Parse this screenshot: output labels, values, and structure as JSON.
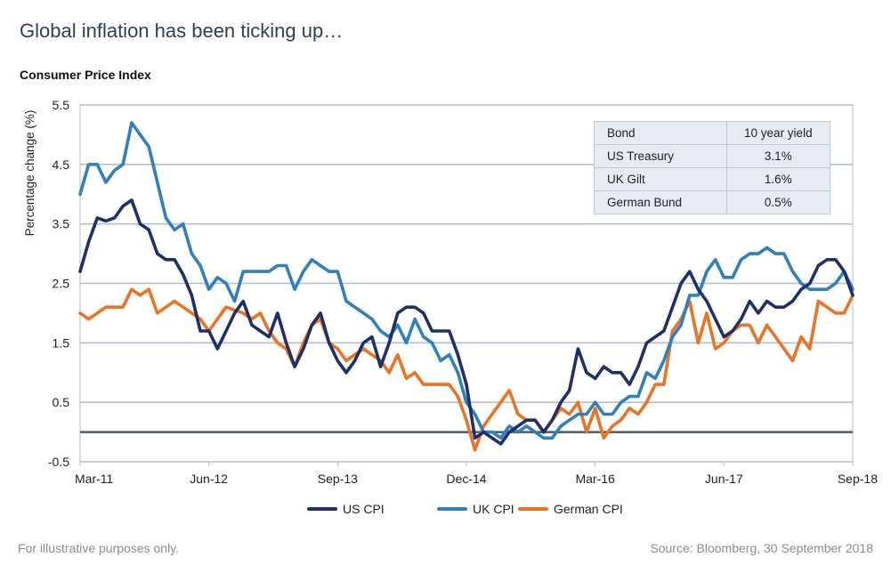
{
  "page_title": "Global inflation has been ticking up…",
  "chart_heading": "Consumer Price Index",
  "bond_table": {
    "header": [
      "Bond",
      "10 year yield"
    ],
    "rows": [
      [
        "US Treasury",
        "3.1%"
      ],
      [
        "UK Gilt",
        "1.6%"
      ],
      [
        "German Bund",
        "0.5%"
      ]
    ]
  },
  "footer": {
    "left": "For illustrative purposes only.",
    "right": "Source: Bloomberg, 30 September 2018"
  },
  "colors": {
    "us": "#1f2f6b",
    "uk": "#2f7fc1",
    "de": "#ec7224",
    "grid": "#b3bfcc",
    "zero": "#4d5a6a"
  },
  "chart_data": {
    "type": "line",
    "title": "",
    "ylabel": "Percentage change (%)",
    "xlabel": "",
    "ylim": [
      -0.5,
      5.5
    ],
    "yticks": [
      -0.5,
      0.5,
      1.5,
      2.5,
      3.5,
      4.5,
      5.5
    ],
    "grid": true,
    "legend_position": "bottom",
    "x_range": [
      "2011-03",
      "2018-09"
    ],
    "x_tick_labels": [
      "Mar-11",
      "Jun-12",
      "Sep-13",
      "Dec-14",
      "Mar-16",
      "Jun-17",
      "Sep-18"
    ],
    "x_ticks": [
      "2011-03",
      "2012-06",
      "2013-09",
      "2014-12",
      "2016-03",
      "2017-06",
      "2018-09"
    ],
    "series": [
      {
        "name": "US CPI",
        "color_key": "us",
        "points": [
          [
            "2011-03",
            2.7
          ],
          [
            "2011-04",
            3.2
          ],
          [
            "2011-05",
            3.6
          ],
          [
            "2011-06",
            3.55
          ],
          [
            "2011-07",
            3.6
          ],
          [
            "2011-08",
            3.8
          ],
          [
            "2011-09",
            3.9
          ],
          [
            "2011-10",
            3.5
          ],
          [
            "2011-11",
            3.4
          ],
          [
            "2011-12",
            3.0
          ],
          [
            "2012-01",
            2.9
          ],
          [
            "2012-02",
            2.9
          ],
          [
            "2012-03",
            2.65
          ],
          [
            "2012-04",
            2.3
          ],
          [
            "2012-05",
            1.7
          ],
          [
            "2012-06",
            1.7
          ],
          [
            "2012-07",
            1.4
          ],
          [
            "2012-08",
            1.7
          ],
          [
            "2012-09",
            2.0
          ],
          [
            "2012-10",
            2.2
          ],
          [
            "2012-11",
            1.8
          ],
          [
            "2012-12",
            1.7
          ],
          [
            "2013-01",
            1.6
          ],
          [
            "2013-02",
            2.0
          ],
          [
            "2013-03",
            1.5
          ],
          [
            "2013-04",
            1.1
          ],
          [
            "2013-05",
            1.4
          ],
          [
            "2013-06",
            1.8
          ],
          [
            "2013-07",
            2.0
          ],
          [
            "2013-08",
            1.5
          ],
          [
            "2013-09",
            1.2
          ],
          [
            "2013-10",
            1.0
          ],
          [
            "2013-11",
            1.2
          ],
          [
            "2013-12",
            1.5
          ],
          [
            "2014-01",
            1.6
          ],
          [
            "2014-02",
            1.1
          ],
          [
            "2014-03",
            1.5
          ],
          [
            "2014-04",
            2.0
          ],
          [
            "2014-05",
            2.1
          ],
          [
            "2014-06",
            2.1
          ],
          [
            "2014-07",
            2.0
          ],
          [
            "2014-08",
            1.7
          ],
          [
            "2014-09",
            1.7
          ],
          [
            "2014-10",
            1.7
          ],
          [
            "2014-11",
            1.3
          ],
          [
            "2014-12",
            0.8
          ],
          [
            "2015-01",
            -0.1
          ],
          [
            "2015-02",
            0.0
          ],
          [
            "2015-03",
            -0.1
          ],
          [
            "2015-04",
            -0.2
          ],
          [
            "2015-05",
            0.0
          ],
          [
            "2015-06",
            0.1
          ],
          [
            "2015-07",
            0.2
          ],
          [
            "2015-08",
            0.2
          ],
          [
            "2015-09",
            0.0
          ],
          [
            "2015-10",
            0.2
          ],
          [
            "2015-11",
            0.5
          ],
          [
            "2015-12",
            0.7
          ],
          [
            "2016-01",
            1.4
          ],
          [
            "2016-02",
            1.0
          ],
          [
            "2016-03",
            0.9
          ],
          [
            "2016-04",
            1.1
          ],
          [
            "2016-05",
            1.0
          ],
          [
            "2016-06",
            1.0
          ],
          [
            "2016-07",
            0.8
          ],
          [
            "2016-08",
            1.1
          ],
          [
            "2016-09",
            1.5
          ],
          [
            "2016-10",
            1.6
          ],
          [
            "2016-11",
            1.7
          ],
          [
            "2016-12",
            2.1
          ],
          [
            "2017-01",
            2.5
          ],
          [
            "2017-02",
            2.7
          ],
          [
            "2017-03",
            2.4
          ],
          [
            "2017-04",
            2.2
          ],
          [
            "2017-05",
            1.9
          ],
          [
            "2017-06",
            1.6
          ],
          [
            "2017-07",
            1.7
          ],
          [
            "2017-08",
            1.9
          ],
          [
            "2017-09",
            2.2
          ],
          [
            "2017-10",
            2.0
          ],
          [
            "2017-11",
            2.2
          ],
          [
            "2017-12",
            2.1
          ],
          [
            "2018-01",
            2.1
          ],
          [
            "2018-02",
            2.2
          ],
          [
            "2018-03",
            2.4
          ],
          [
            "2018-04",
            2.5
          ],
          [
            "2018-05",
            2.8
          ],
          [
            "2018-06",
            2.9
          ],
          [
            "2018-07",
            2.9
          ],
          [
            "2018-08",
            2.7
          ],
          [
            "2018-09",
            2.3
          ]
        ]
      },
      {
        "name": "UK CPI",
        "color_key": "uk",
        "points": [
          [
            "2011-03",
            4.0
          ],
          [
            "2011-04",
            4.5
          ],
          [
            "2011-05",
            4.5
          ],
          [
            "2011-06",
            4.2
          ],
          [
            "2011-07",
            4.4
          ],
          [
            "2011-08",
            4.5
          ],
          [
            "2011-09",
            5.2
          ],
          [
            "2011-10",
            5.0
          ],
          [
            "2011-11",
            4.8
          ],
          [
            "2011-12",
            4.2
          ],
          [
            "2012-01",
            3.6
          ],
          [
            "2012-02",
            3.4
          ],
          [
            "2012-03",
            3.5
          ],
          [
            "2012-04",
            3.0
          ],
          [
            "2012-05",
            2.8
          ],
          [
            "2012-06",
            2.4
          ],
          [
            "2012-07",
            2.6
          ],
          [
            "2012-08",
            2.5
          ],
          [
            "2012-09",
            2.2
          ],
          [
            "2012-10",
            2.7
          ],
          [
            "2012-11",
            2.7
          ],
          [
            "2012-12",
            2.7
          ],
          [
            "2013-01",
            2.7
          ],
          [
            "2013-02",
            2.8
          ],
          [
            "2013-03",
            2.8
          ],
          [
            "2013-04",
            2.4
          ],
          [
            "2013-05",
            2.7
          ],
          [
            "2013-06",
            2.9
          ],
          [
            "2013-07",
            2.8
          ],
          [
            "2013-08",
            2.7
          ],
          [
            "2013-09",
            2.7
          ],
          [
            "2013-10",
            2.2
          ],
          [
            "2013-11",
            2.1
          ],
          [
            "2013-12",
            2.0
          ],
          [
            "2014-01",
            1.9
          ],
          [
            "2014-02",
            1.7
          ],
          [
            "2014-03",
            1.6
          ],
          [
            "2014-04",
            1.8
          ],
          [
            "2014-05",
            1.5
          ],
          [
            "2014-06",
            1.9
          ],
          [
            "2014-07",
            1.6
          ],
          [
            "2014-08",
            1.5
          ],
          [
            "2014-09",
            1.2
          ],
          [
            "2014-10",
            1.3
          ],
          [
            "2014-11",
            1.0
          ],
          [
            "2014-12",
            0.5
          ],
          [
            "2015-01",
            0.3
          ],
          [
            "2015-02",
            0.0
          ],
          [
            "2015-03",
            0.0
          ],
          [
            "2015-04",
            -0.1
          ],
          [
            "2015-05",
            0.1
          ],
          [
            "2015-06",
            0.0
          ],
          [
            "2015-07",
            0.1
          ],
          [
            "2015-08",
            0.0
          ],
          [
            "2015-09",
            -0.1
          ],
          [
            "2015-10",
            -0.1
          ],
          [
            "2015-11",
            0.1
          ],
          [
            "2015-12",
            0.2
          ],
          [
            "2016-01",
            0.3
          ],
          [
            "2016-02",
            0.3
          ],
          [
            "2016-03",
            0.5
          ],
          [
            "2016-04",
            0.3
          ],
          [
            "2016-05",
            0.3
          ],
          [
            "2016-06",
            0.5
          ],
          [
            "2016-07",
            0.6
          ],
          [
            "2016-08",
            0.6
          ],
          [
            "2016-09",
            1.0
          ],
          [
            "2016-10",
            0.9
          ],
          [
            "2016-11",
            1.2
          ],
          [
            "2016-12",
            1.6
          ],
          [
            "2017-01",
            1.8
          ],
          [
            "2017-02",
            2.3
          ],
          [
            "2017-03",
            2.3
          ],
          [
            "2017-04",
            2.7
          ],
          [
            "2017-05",
            2.9
          ],
          [
            "2017-06",
            2.6
          ],
          [
            "2017-07",
            2.6
          ],
          [
            "2017-08",
            2.9
          ],
          [
            "2017-09",
            3.0
          ],
          [
            "2017-10",
            3.0
          ],
          [
            "2017-11",
            3.1
          ],
          [
            "2017-12",
            3.0
          ],
          [
            "2018-01",
            3.0
          ],
          [
            "2018-02",
            2.7
          ],
          [
            "2018-03",
            2.5
          ],
          [
            "2018-04",
            2.4
          ],
          [
            "2018-05",
            2.4
          ],
          [
            "2018-06",
            2.4
          ],
          [
            "2018-07",
            2.5
          ],
          [
            "2018-08",
            2.7
          ],
          [
            "2018-09",
            2.4
          ]
        ]
      },
      {
        "name": "German CPI",
        "color_key": "de",
        "points": [
          [
            "2011-03",
            2.0
          ],
          [
            "2011-04",
            1.9
          ],
          [
            "2011-05",
            2.0
          ],
          [
            "2011-06",
            2.1
          ],
          [
            "2011-07",
            2.1
          ],
          [
            "2011-08",
            2.1
          ],
          [
            "2011-09",
            2.4
          ],
          [
            "2011-10",
            2.3
          ],
          [
            "2011-11",
            2.4
          ],
          [
            "2011-12",
            2.0
          ],
          [
            "2012-01",
            2.1
          ],
          [
            "2012-02",
            2.2
          ],
          [
            "2012-03",
            2.1
          ],
          [
            "2012-04",
            2.0
          ],
          [
            "2012-05",
            1.9
          ],
          [
            "2012-06",
            1.7
          ],
          [
            "2012-07",
            1.9
          ],
          [
            "2012-08",
            2.1
          ],
          [
            "2012-09",
            2.05
          ],
          [
            "2012-10",
            2.0
          ],
          [
            "2012-11",
            1.9
          ],
          [
            "2012-12",
            2.0
          ],
          [
            "2013-01",
            1.7
          ],
          [
            "2013-02",
            1.5
          ],
          [
            "2013-03",
            1.4
          ],
          [
            "2013-04",
            1.1
          ],
          [
            "2013-05",
            1.5
          ],
          [
            "2013-06",
            1.8
          ],
          [
            "2013-07",
            1.9
          ],
          [
            "2013-08",
            1.5
          ],
          [
            "2013-09",
            1.4
          ],
          [
            "2013-10",
            1.2
          ],
          [
            "2013-11",
            1.3
          ],
          [
            "2013-12",
            1.4
          ],
          [
            "2014-01",
            1.3
          ],
          [
            "2014-02",
            1.2
          ],
          [
            "2014-03",
            1.0
          ],
          [
            "2014-04",
            1.3
          ],
          [
            "2014-05",
            0.9
          ],
          [
            "2014-06",
            1.0
          ],
          [
            "2014-07",
            0.8
          ],
          [
            "2014-08",
            0.8
          ],
          [
            "2014-09",
            0.8
          ],
          [
            "2014-10",
            0.8
          ],
          [
            "2014-11",
            0.6
          ],
          [
            "2014-12",
            0.2
          ],
          [
            "2015-01",
            -0.3
          ],
          [
            "2015-02",
            0.1
          ],
          [
            "2015-03",
            0.3
          ],
          [
            "2015-04",
            0.5
          ],
          [
            "2015-05",
            0.7
          ],
          [
            "2015-06",
            0.3
          ],
          [
            "2015-07",
            0.2
          ],
          [
            "2015-08",
            0.2
          ],
          [
            "2015-09",
            0.0
          ],
          [
            "2015-10",
            0.2
          ],
          [
            "2015-11",
            0.4
          ],
          [
            "2015-12",
            0.3
          ],
          [
            "2016-01",
            0.5
          ],
          [
            "2016-02",
            0.0
          ],
          [
            "2016-03",
            0.4
          ],
          [
            "2016-04",
            -0.1
          ],
          [
            "2016-05",
            0.1
          ],
          [
            "2016-06",
            0.2
          ],
          [
            "2016-07",
            0.4
          ],
          [
            "2016-08",
            0.3
          ],
          [
            "2016-09",
            0.5
          ],
          [
            "2016-10",
            0.8
          ],
          [
            "2016-11",
            0.8
          ],
          [
            "2016-12",
            1.7
          ],
          [
            "2017-01",
            1.9
          ],
          [
            "2017-02",
            2.2
          ],
          [
            "2017-03",
            1.5
          ],
          [
            "2017-04",
            2.0
          ],
          [
            "2017-05",
            1.4
          ],
          [
            "2017-06",
            1.5
          ],
          [
            "2017-07",
            1.7
          ],
          [
            "2017-08",
            1.8
          ],
          [
            "2017-09",
            1.8
          ],
          [
            "2017-10",
            1.5
          ],
          [
            "2017-11",
            1.8
          ],
          [
            "2017-12",
            1.6
          ],
          [
            "2018-01",
            1.4
          ],
          [
            "2018-02",
            1.2
          ],
          [
            "2018-03",
            1.6
          ],
          [
            "2018-04",
            1.4
          ],
          [
            "2018-05",
            2.2
          ],
          [
            "2018-06",
            2.1
          ],
          [
            "2018-07",
            2.0
          ],
          [
            "2018-08",
            2.0
          ],
          [
            "2018-09",
            2.3
          ]
        ]
      }
    ]
  }
}
